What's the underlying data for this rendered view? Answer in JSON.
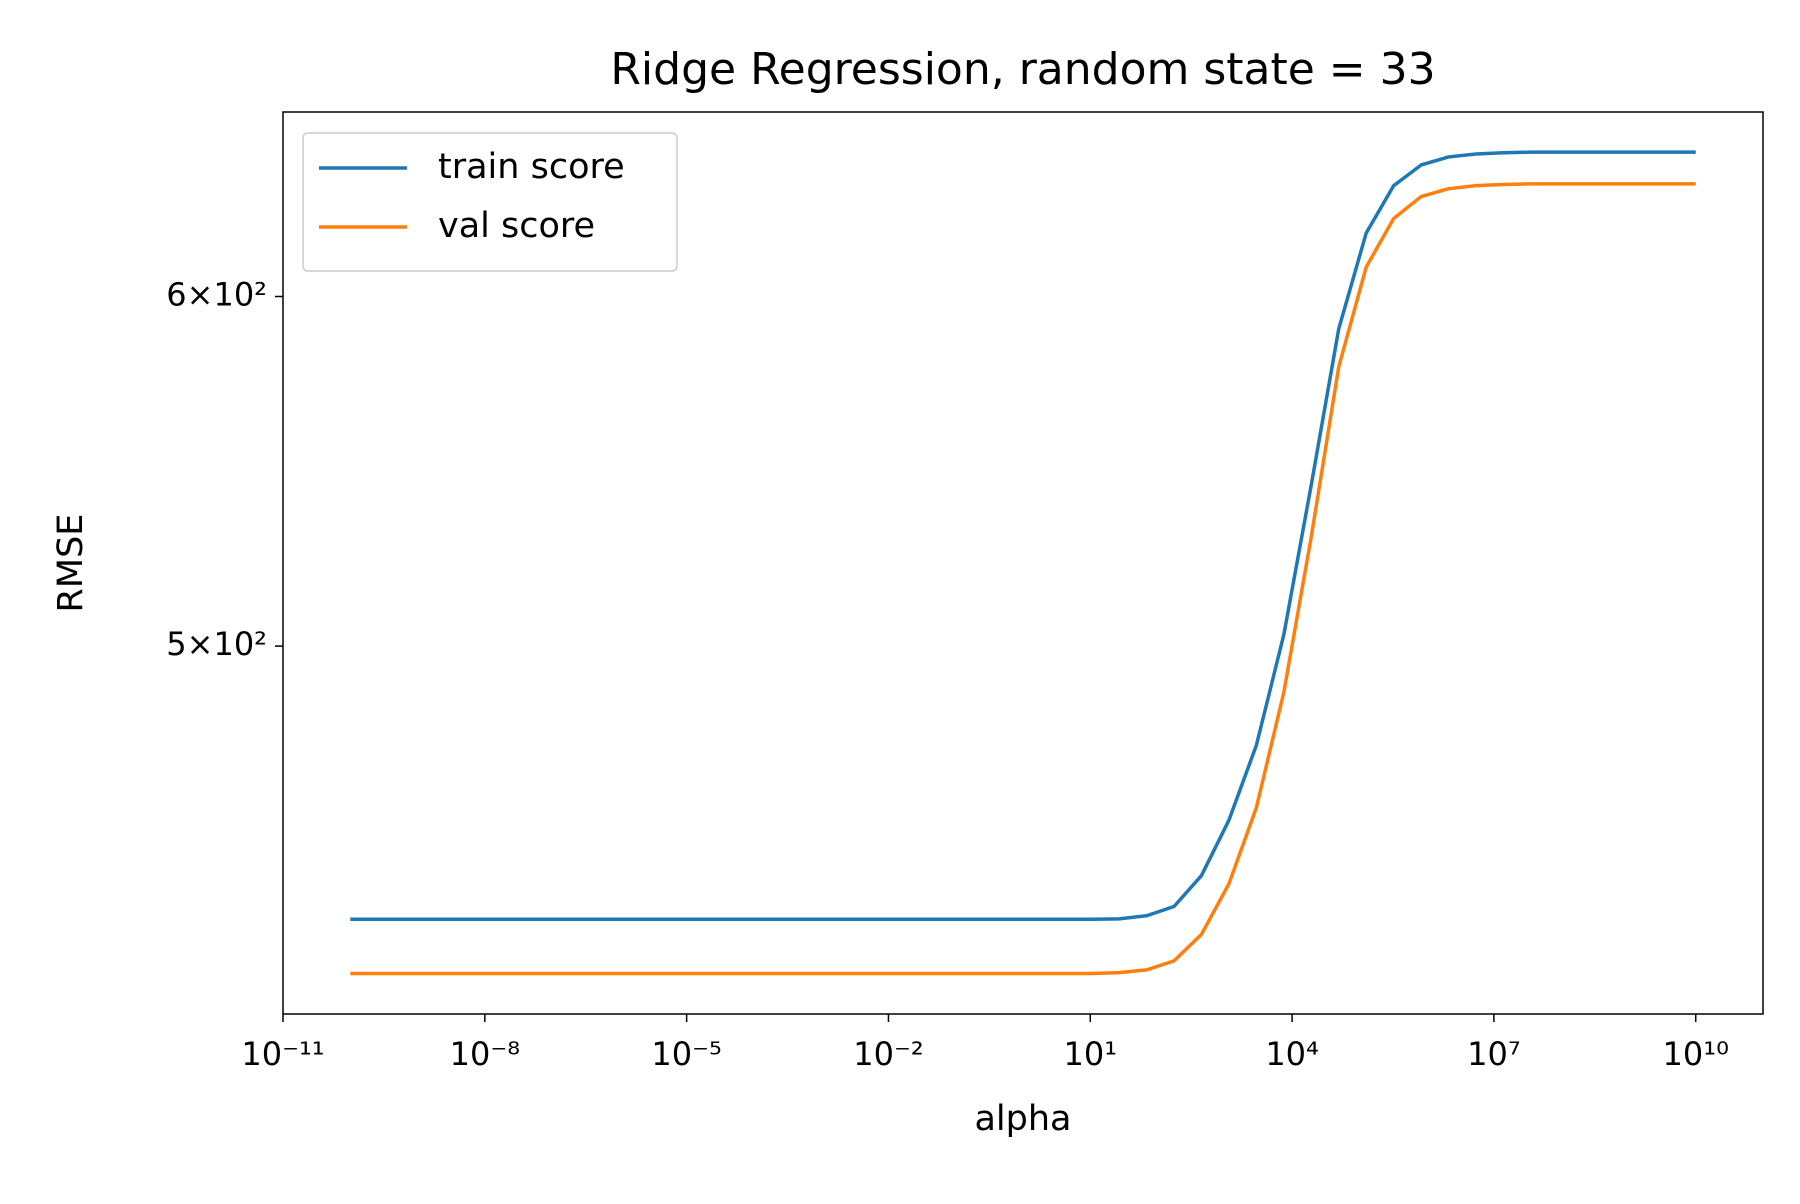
{
  "chart_data": {
    "type": "line",
    "title": "Ridge Regression, random state = 33",
    "x_label": "alpha",
    "y_label": "RMSE",
    "xscale": "log",
    "yscale": "log",
    "x": [
      1e-10,
      2.56e-10,
      6.551e-10,
      1.677e-09,
      4.292e-09,
      1.099e-08,
      2.812e-08,
      7.197e-08,
      1.842e-07,
      4.715e-07,
      1.207e-06,
      3.089e-06,
      7.907e-06,
      2.024e-05,
      5.179e-05,
      0.0001326,
      0.0003393,
      0.0008687,
      0.002223,
      0.00569,
      0.01456,
      0.03728,
      0.09541,
      0.2442,
      0.6251,
      1.6,
      4.095,
      10.48,
      26.83,
      68.66,
      175.8,
      449.8,
      1151,
      2947,
      7543,
      19307,
      49417,
      126486,
      323746,
      828643,
      2120951,
      5428675,
      13894955,
      35564803,
      91029818,
      233000000.0,
      596400000.0,
      1526000000.0,
      3907000000.0,
      10000000000.0
    ],
    "series": [
      {
        "name": "train score",
        "color": "#1f77b4",
        "values": [
          433.6,
          433.6,
          433.6,
          433.6,
          433.6,
          433.6,
          433.6,
          433.6,
          433.6,
          433.6,
          433.6,
          433.6,
          433.6,
          433.6,
          433.6,
          433.6,
          433.6,
          433.6,
          433.6,
          433.6,
          433.6,
          433.6,
          433.6,
          433.6,
          433.6,
          433.6,
          433.6,
          433.6,
          433.7,
          434.4,
          436.5,
          443.6,
          456.6,
          474.8,
          503.0,
          543.9,
          590.0,
          620.2,
          635.7,
          642.6,
          645.3,
          646.3,
          646.7,
          646.9,
          646.9,
          646.9,
          646.9,
          646.9,
          646.9,
          646.9
        ]
      },
      {
        "name": "val score",
        "color": "#ff7f0e",
        "values": [
          421.5,
          421.5,
          421.5,
          421.5,
          421.5,
          421.5,
          421.5,
          421.5,
          421.5,
          421.5,
          421.5,
          421.5,
          421.5,
          421.5,
          421.5,
          421.5,
          421.5,
          421.5,
          421.5,
          421.5,
          421.5,
          421.5,
          421.5,
          421.5,
          421.5,
          421.5,
          421.5,
          421.5,
          421.7,
          422.3,
          424.3,
          430.2,
          441.7,
          459.6,
          488.1,
          529.4,
          578.4,
          609.3,
          624.9,
          632.1,
          634.7,
          635.7,
          636.1,
          636.3,
          636.3,
          636.3,
          636.3,
          636.3,
          636.3,
          636.3
        ]
      }
    ],
    "xlim": [
      1e-11,
      100000000000.0
    ],
    "xticks": [
      {
        "value": 1e-11,
        "label": "10⁻¹¹"
      },
      {
        "value": 1e-08,
        "label": "10⁻⁸"
      },
      {
        "value": 1e-05,
        "label": "10⁻⁵"
      },
      {
        "value": 0.01,
        "label": "10⁻²"
      },
      {
        "value": 10,
        "label": "10¹"
      },
      {
        "value": 10000,
        "label": "10⁴"
      },
      {
        "value": 10000000,
        "label": "10⁷"
      },
      {
        "value": 10000000000,
        "label": "10¹⁰"
      }
    ],
    "ylim": [
      412.7,
      660.6
    ],
    "yticks": [
      {
        "value": 500,
        "label": "5×10²"
      },
      {
        "value": 600,
        "label": "6×10²"
      }
    ],
    "grid": false,
    "legend": "upper left"
  }
}
